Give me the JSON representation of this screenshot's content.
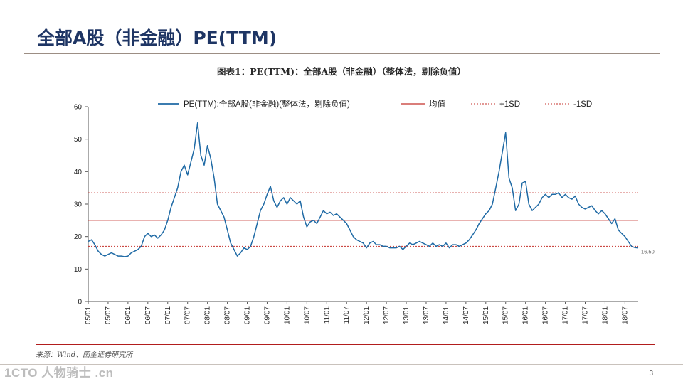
{
  "slide": {
    "title": "全部A股（非金融）PE(TTM)",
    "source_note": "来源：Wind、国金证券研究所",
    "watermark": "1CTO 人物骑士 .cn",
    "page_number": "3"
  },
  "chart_data": {
    "type": "line",
    "title": "图表1：PE(TTM)：全部A股（非金融）（整体法，剔除负值）",
    "xlabel": "",
    "ylabel": "",
    "ylim": [
      0,
      60
    ],
    "yticks": [
      0,
      10,
      20,
      30,
      40,
      50,
      60
    ],
    "x_range": [
      0,
      166
    ],
    "x_ticks": [
      {
        "label": "05/01",
        "x": 0
      },
      {
        "label": "05/07",
        "x": 6
      },
      {
        "label": "06/01",
        "x": 12
      },
      {
        "label": "06/07",
        "x": 18
      },
      {
        "label": "07/01",
        "x": 24
      },
      {
        "label": "07/07",
        "x": 30
      },
      {
        "label": "08/01",
        "x": 36
      },
      {
        "label": "08/07",
        "x": 42
      },
      {
        "label": "09/01",
        "x": 48
      },
      {
        "label": "09/07",
        "x": 54
      },
      {
        "label": "10/01",
        "x": 60
      },
      {
        "label": "10/07",
        "x": 66
      },
      {
        "label": "11/01",
        "x": 72
      },
      {
        "label": "11/07",
        "x": 78
      },
      {
        "label": "12/01",
        "x": 84
      },
      {
        "label": "12/07",
        "x": 90
      },
      {
        "label": "13/01",
        "x": 96
      },
      {
        "label": "13/07",
        "x": 102
      },
      {
        "label": "14/01",
        "x": 108
      },
      {
        "label": "14/07",
        "x": 114
      },
      {
        "label": "15/01",
        "x": 120
      },
      {
        "label": "15/07",
        "x": 126
      },
      {
        "label": "16/01",
        "x": 132
      },
      {
        "label": "16/07",
        "x": 138
      },
      {
        "label": "17/01",
        "x": 144
      },
      {
        "label": "17/07",
        "x": 150
      },
      {
        "label": "18/01",
        "x": 156
      },
      {
        "label": "18/07",
        "x": 162
      }
    ],
    "grid": false,
    "legend_position": "top",
    "series": [
      {
        "name": "PE(TTM):全部A股(非金融)(整体法，剔除负值)",
        "color": "#1f6aa5",
        "style": "solid",
        "points": [
          [
            0,
            18.5
          ],
          [
            1,
            19
          ],
          [
            2,
            17.5
          ],
          [
            3,
            15.5
          ],
          [
            4,
            14.5
          ],
          [
            5,
            14
          ],
          [
            6,
            14.5
          ],
          [
            7,
            15
          ],
          [
            8,
            14.5
          ],
          [
            9,
            14
          ],
          [
            10,
            14
          ],
          [
            11,
            13.8
          ],
          [
            12,
            14
          ],
          [
            13,
            15
          ],
          [
            14,
            15.5
          ],
          [
            15,
            16
          ],
          [
            16,
            17
          ],
          [
            17,
            20
          ],
          [
            18,
            21
          ],
          [
            19,
            20
          ],
          [
            20,
            20.5
          ],
          [
            21,
            19.5
          ],
          [
            22,
            20.5
          ],
          [
            23,
            22
          ],
          [
            24,
            25
          ],
          [
            25,
            29
          ],
          [
            26,
            32
          ],
          [
            27,
            35
          ],
          [
            28,
            40
          ],
          [
            29,
            42
          ],
          [
            30,
            39
          ],
          [
            31,
            43
          ],
          [
            32,
            47
          ],
          [
            33,
            55
          ],
          [
            34,
            45
          ],
          [
            35,
            42
          ],
          [
            36,
            48
          ],
          [
            37,
            44
          ],
          [
            38,
            38
          ],
          [
            39,
            30
          ],
          [
            40,
            28
          ],
          [
            41,
            26
          ],
          [
            42,
            22
          ],
          [
            43,
            18
          ],
          [
            44,
            16
          ],
          [
            45,
            14
          ],
          [
            46,
            15
          ],
          [
            47,
            16.5
          ],
          [
            48,
            16
          ],
          [
            49,
            17
          ],
          [
            50,
            20
          ],
          [
            51,
            24
          ],
          [
            52,
            28
          ],
          [
            53,
            30
          ],
          [
            54,
            33
          ],
          [
            55,
            35.5
          ],
          [
            56,
            31
          ],
          [
            57,
            29
          ],
          [
            58,
            31
          ],
          [
            59,
            32
          ],
          [
            60,
            30
          ],
          [
            61,
            32
          ],
          [
            62,
            31
          ],
          [
            63,
            30
          ],
          [
            64,
            31
          ],
          [
            65,
            26
          ],
          [
            66,
            23
          ],
          [
            67,
            24.5
          ],
          [
            68,
            25
          ],
          [
            69,
            24
          ],
          [
            70,
            26
          ],
          [
            71,
            28
          ],
          [
            72,
            27
          ],
          [
            73,
            27.5
          ],
          [
            74,
            26.5
          ],
          [
            75,
            27
          ],
          [
            76,
            26
          ],
          [
            77,
            25
          ],
          [
            78,
            24
          ],
          [
            79,
            22
          ],
          [
            80,
            20
          ],
          [
            81,
            19
          ],
          [
            82,
            18.5
          ],
          [
            83,
            18
          ],
          [
            84,
            16.5
          ],
          [
            85,
            18
          ],
          [
            86,
            18.5
          ],
          [
            87,
            17.5
          ],
          [
            88,
            17.5
          ],
          [
            89,
            17
          ],
          [
            90,
            17
          ],
          [
            91,
            16.5
          ],
          [
            92,
            16.5
          ],
          [
            93,
            16.5
          ],
          [
            94,
            17
          ],
          [
            95,
            16
          ],
          [
            96,
            17
          ],
          [
            97,
            18
          ],
          [
            98,
            17.5
          ],
          [
            99,
            18
          ],
          [
            100,
            18.5
          ],
          [
            101,
            18
          ],
          [
            102,
            17.5
          ],
          [
            103,
            17
          ],
          [
            104,
            18
          ],
          [
            105,
            17
          ],
          [
            106,
            17.5
          ],
          [
            107,
            17
          ],
          [
            108,
            18
          ],
          [
            109,
            16.5
          ],
          [
            110,
            17.5
          ],
          [
            111,
            17.5
          ],
          [
            112,
            17
          ],
          [
            113,
            17.5
          ],
          [
            114,
            18
          ],
          [
            115,
            19
          ],
          [
            116,
            20.5
          ],
          [
            117,
            22
          ],
          [
            118,
            24
          ],
          [
            119,
            25.5
          ],
          [
            120,
            27
          ],
          [
            121,
            28
          ],
          [
            122,
            30
          ],
          [
            123,
            35
          ],
          [
            124,
            40
          ],
          [
            125,
            46
          ],
          [
            126,
            52
          ],
          [
            127,
            38
          ],
          [
            128,
            35
          ],
          [
            129,
            28
          ],
          [
            130,
            30
          ],
          [
            131,
            36.5
          ],
          [
            132,
            37
          ],
          [
            133,
            30
          ],
          [
            134,
            28
          ],
          [
            135,
            29
          ],
          [
            136,
            30
          ],
          [
            137,
            32
          ],
          [
            138,
            33
          ],
          [
            139,
            32
          ],
          [
            140,
            33
          ],
          [
            141,
            33
          ],
          [
            142,
            33.5
          ],
          [
            143,
            32
          ],
          [
            144,
            33
          ],
          [
            145,
            32
          ],
          [
            146,
            31.5
          ],
          [
            147,
            32.5
          ],
          [
            148,
            30
          ],
          [
            149,
            29
          ],
          [
            150,
            28.5
          ],
          [
            151,
            29
          ],
          [
            152,
            29.5
          ],
          [
            153,
            28
          ],
          [
            154,
            27
          ],
          [
            155,
            28
          ],
          [
            156,
            27
          ],
          [
            157,
            25.5
          ],
          [
            158,
            24
          ],
          [
            159,
            25.5
          ],
          [
            160,
            22
          ],
          [
            161,
            21
          ],
          [
            162,
            20
          ],
          [
            163,
            18.5
          ],
          [
            164,
            17
          ],
          [
            165,
            16.6
          ],
          [
            166,
            16.5
          ]
        ]
      },
      {
        "name": "均值",
        "color": "#c4302b",
        "style": "solid",
        "value": 25
      },
      {
        "name": "+1SD",
        "color": "#c4302b",
        "style": "dashed",
        "value": 33.5
      },
      {
        "name": "-1SD",
        "color": "#c4302b",
        "style": "dashed",
        "value": 17
      }
    ],
    "end_label": "16.50"
  }
}
